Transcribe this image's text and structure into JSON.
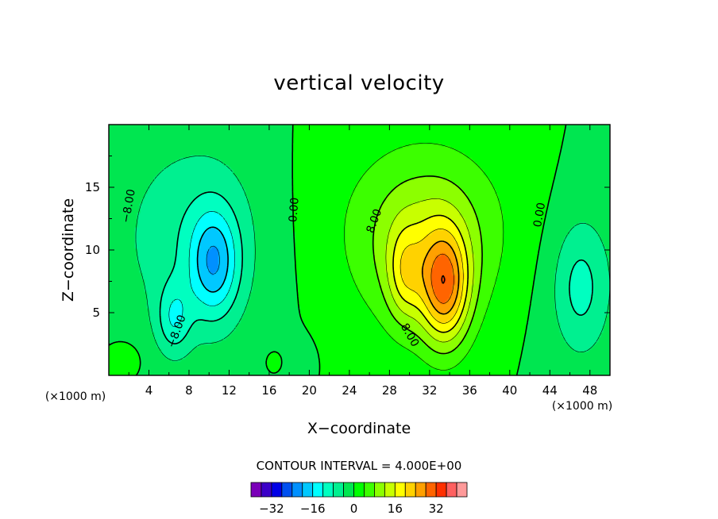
{
  "chart_data": {
    "type": "heatmap",
    "subtype": "filled-contour",
    "title": "vertical velocity",
    "xlabel": "X−coordinate",
    "ylabel": "Z−coordinate",
    "x_unit_label": "(×1000 m)",
    "y_unit_label": "(×1000 m)",
    "xlim": [
      0,
      50
    ],
    "ylim": [
      0,
      20
    ],
    "x_ticks": [
      "4",
      "8",
      "12",
      "16",
      "20",
      "24",
      "28",
      "32",
      "36",
      "40",
      "44",
      "48"
    ],
    "x_tick_values": [
      4,
      8,
      12,
      16,
      20,
      24,
      28,
      32,
      36,
      40,
      44,
      48
    ],
    "y_ticks": [
      "5",
      "10",
      "15"
    ],
    "y_tick_values": [
      5,
      10,
      15
    ],
    "contour_interval_text": "CONTOUR INTERVAL = 4.000E+00",
    "contour_interval": 4.0,
    "contour_labels": [
      {
        "text": "−8.00",
        "x": 2.0,
        "y": 13.5,
        "rotation": -80
      },
      {
        "text": "−8.00",
        "x": 6.8,
        "y": 3.5,
        "rotation": -70
      },
      {
        "text": "0.00",
        "x": 18.5,
        "y": 13.2,
        "rotation": -85
      },
      {
        "text": "8.00",
        "x": 26.5,
        "y": 12.3,
        "rotation": -70
      },
      {
        "text": "8.00",
        "x": 30.0,
        "y": 3.2,
        "rotation": 60
      },
      {
        "text": "0.00",
        "x": 43.0,
        "y": 12.8,
        "rotation": -80
      }
    ],
    "colorbar": {
      "tick_labels": [
        "−32",
        "−16",
        "0",
        "16",
        "32"
      ],
      "tick_values": [
        -32,
        -16,
        0,
        16,
        32
      ],
      "levels": [
        -40,
        -36,
        -32,
        -28,
        -24,
        -20,
        -16,
        -12,
        -8,
        -4,
        0,
        4,
        8,
        12,
        16,
        20,
        24,
        28,
        32,
        36,
        40
      ],
      "colors": [
        "#7a00b8",
        "#3b00c8",
        "#0000e6",
        "#0050f0",
        "#0090ff",
        "#00c8ff",
        "#00ffff",
        "#00ffc0",
        "#00f090",
        "#00e650",
        "#00ff00",
        "#3cff00",
        "#8cff00",
        "#c8ff00",
        "#ffff00",
        "#ffd200",
        "#ffa000",
        "#ff6400",
        "#ff3000",
        "#ff6060",
        "#ff9a9a"
      ]
    },
    "features": [
      {
        "kind": "updraft",
        "x": 33.5,
        "z": 7.0,
        "amp": 22,
        "sx": 1.7,
        "sz": 3.2
      },
      {
        "kind": "updraft",
        "x": 31.5,
        "z": 10.0,
        "amp": 9,
        "sx": 4.0,
        "sz": 4.5
      },
      {
        "kind": "updraft",
        "x": 29.5,
        "z": 8.0,
        "amp": 9,
        "sx": 1.2,
        "sz": 2.6
      },
      {
        "kind": "updraft",
        "x": 31.5,
        "z": 12.0,
        "amp": 5,
        "sx": 8.0,
        "sz": 5.5
      },
      {
        "kind": "downdraft",
        "x": 10.5,
        "z": 9.0,
        "amp": -15,
        "sx": 1.7,
        "sz": 3.0
      },
      {
        "kind": "downdraft",
        "x": 6.5,
        "z": 4.5,
        "amp": -9,
        "sx": 1.2,
        "sz": 2.0
      },
      {
        "kind": "downdraft",
        "x": 8.5,
        "z": 11.0,
        "amp": -7,
        "sx": 5.5,
        "sz": 6.0
      },
      {
        "kind": "downdraft",
        "x": 47.0,
        "z": 7.0,
        "amp": -7,
        "sx": 1.8,
        "sz": 3.5
      },
      {
        "kind": "downdraft",
        "x": 47.5,
        "z": 8.0,
        "amp": -3,
        "sx": 4.0,
        "sz": 6.0
      },
      {
        "kind": "downdraft",
        "x": 18.0,
        "z": 1.3,
        "amp": -3,
        "sx": 1.3,
        "sz": 1.2
      },
      {
        "kind": "updraft",
        "x": 17.0,
        "z": 1.2,
        "amp": 3,
        "sx": 1.0,
        "sz": 0.9
      },
      {
        "kind": "updraft",
        "x": 1.5,
        "z": 1.3,
        "amp": 3,
        "sx": 1.2,
        "sz": 1.0
      }
    ]
  }
}
